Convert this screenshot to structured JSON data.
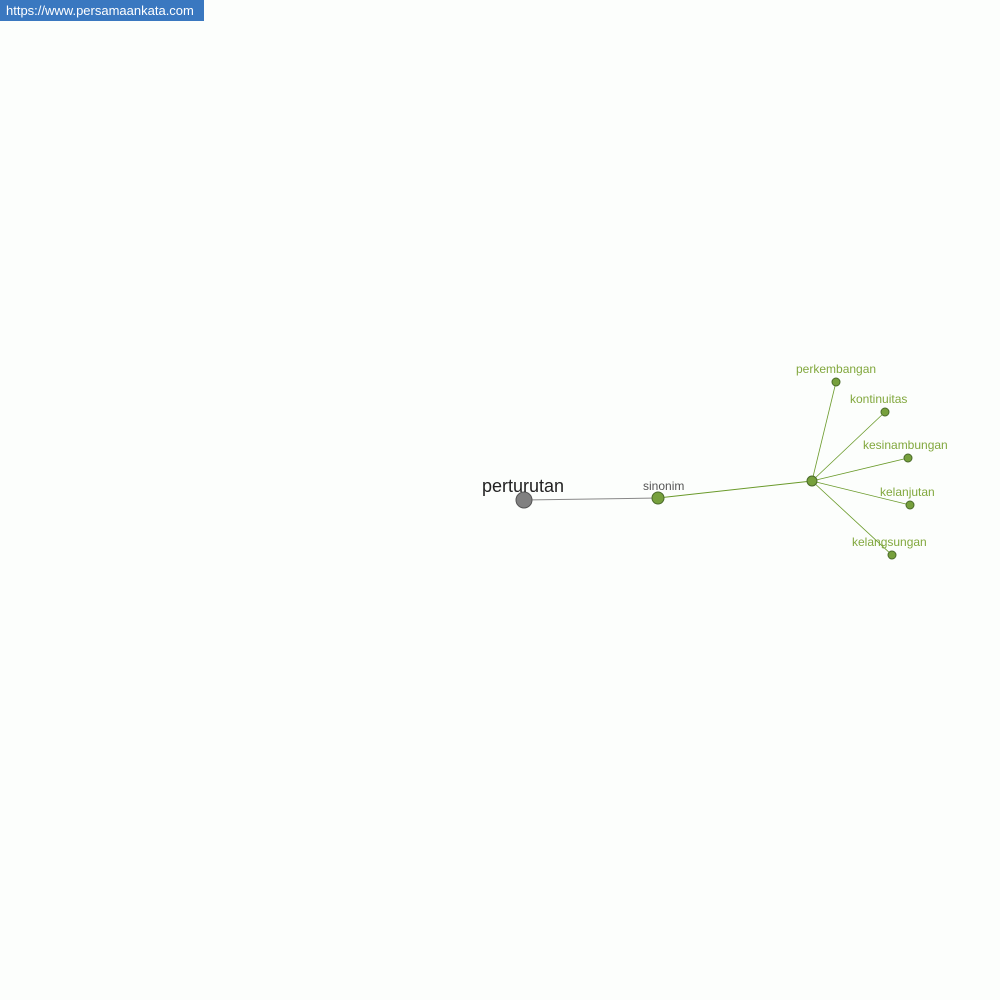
{
  "banner": {
    "url": "https://www.persamaankata.com"
  },
  "graph": {
    "root": {
      "label": "perturutan",
      "color": "#808080"
    },
    "relation": {
      "label": "sinonim",
      "color": "#76a03c"
    },
    "synonyms": [
      {
        "label": "perkembangan"
      },
      {
        "label": "kontinuitas"
      },
      {
        "label": "kesinambungan"
      },
      {
        "label": "kelanjutan"
      },
      {
        "label": "kelangsungan"
      }
    ],
    "colors": {
      "synonym_text": "#82a83e",
      "node_fill": "#76a03c",
      "edge": "#6a9a2a",
      "root_text": "#222222",
      "relation_text": "#555555"
    }
  }
}
